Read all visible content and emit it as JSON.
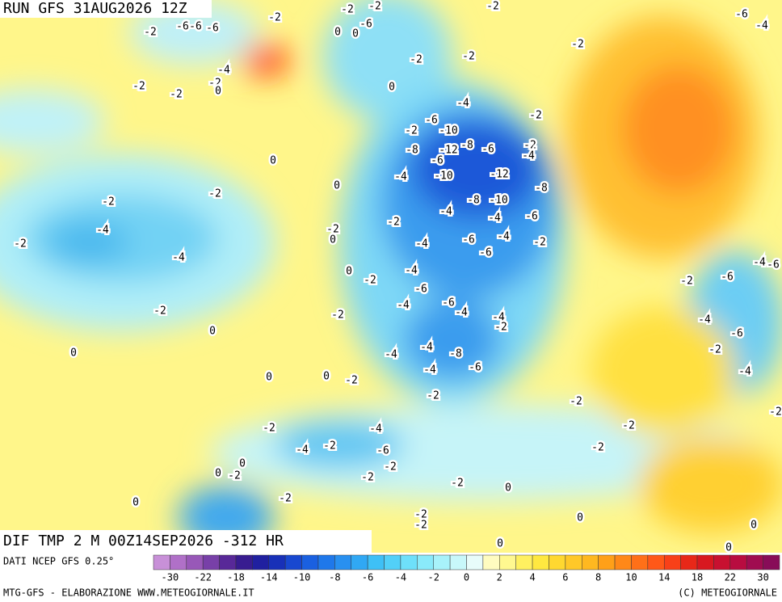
{
  "header": {
    "title": "RUN GFS 31AUG2026 12Z"
  },
  "footer": {
    "product": "DIF TMP 2 M 00Z14SEP2026 -312 HR",
    "source": "DATI NCEP GFS 0.25°",
    "credit_left": "MTG-GFS - ELABORAZIONE WWW.METEOGIORNALE.IT",
    "credit_right": "(C) METEOGIORNALE"
  },
  "colorbar": {
    "colors": [
      "#c890d8",
      "#b070c8",
      "#9858b8",
      "#7840a8",
      "#582898",
      "#381c90",
      "#2020a0",
      "#1830b8",
      "#1848d0",
      "#1a60e0",
      "#1f78ea",
      "#2890f0",
      "#30a8f4",
      "#3ec0f6",
      "#52d0f8",
      "#6ee0fa",
      "#8aeafa",
      "#a8f2fa",
      "#c8f8fa",
      "#e8fcfa",
      "#fffcc0",
      "#fff890",
      "#fff060",
      "#ffe840",
      "#ffd830",
      "#ffc828",
      "#ffb820",
      "#ffa018",
      "#ff8818",
      "#ff7018",
      "#ff5818",
      "#f84018",
      "#e82818",
      "#d81820",
      "#c81030",
      "#b80c40",
      "#a00c50",
      "#880c58"
    ],
    "ticks": [
      -30,
      -22,
      -18,
      -14,
      -10,
      -8,
      -6,
      -4,
      -2,
      0,
      2,
      4,
      6,
      8,
      10,
      14,
      18,
      22,
      30
    ]
  },
  "map": {
    "contour_labels": [
      -2,
      -2,
      -2,
      -6,
      -6,
      -6,
      -2,
      0,
      0,
      -6,
      -2,
      -6,
      -4,
      -2,
      -2,
      -2,
      -4,
      -2,
      0,
      -2,
      -2,
      0,
      -4,
      -2,
      -6,
      -2,
      -10,
      -8,
      -12,
      -8,
      -6,
      -2,
      -4,
      0,
      -6,
      -4,
      -10,
      -12,
      -8,
      0,
      -2,
      -2,
      -8,
      -10,
      -4,
      -4,
      -6,
      -2,
      -2,
      0,
      -4,
      -2,
      -4,
      -6,
      -4,
      -2,
      -6,
      -4,
      0,
      -4,
      -2,
      -6,
      -2,
      -6,
      -4,
      -6,
      -4,
      -6,
      -4,
      -2,
      -2,
      -4,
      -2,
      0,
      -4,
      -6,
      0,
      -4,
      -4,
      -8,
      -2,
      -4,
      -6,
      -4,
      0,
      -2,
      0,
      -2,
      -2,
      -2,
      -2,
      -4,
      -2,
      -4,
      -2,
      -6,
      -2,
      -2,
      0,
      0,
      -2,
      -2,
      -2,
      0,
      0,
      -2,
      -2,
      -2,
      0,
      0,
      0,
      0
    ]
  }
}
